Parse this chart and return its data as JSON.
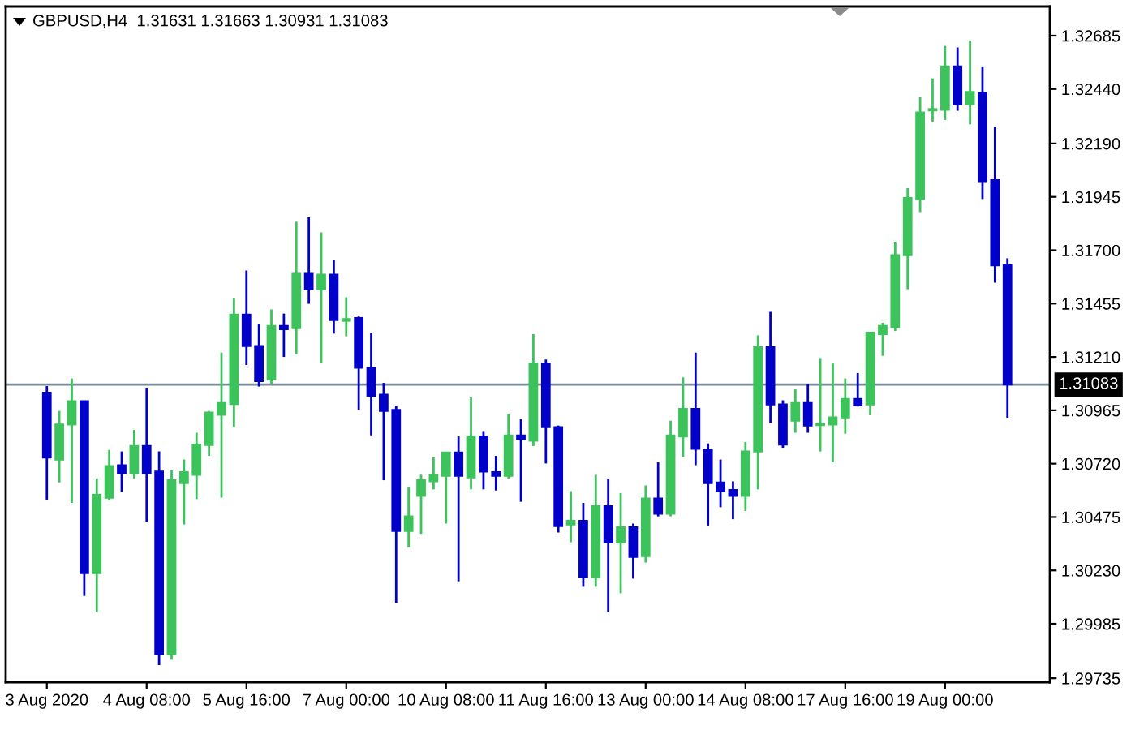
{
  "chart_data": {
    "type": "candlestick",
    "title": "GBPUSD,H4  1.31631 1.31663 1.30931 1.31083",
    "categories": [
      "3 Aug 2020",
      null,
      null,
      null,
      null,
      null,
      null,
      null,
      "4 Aug 08:00",
      null,
      null,
      null,
      null,
      null,
      null,
      null,
      "5 Aug 16:00",
      null,
      null,
      null,
      null,
      null,
      null,
      null,
      "7 Aug 00:00",
      null,
      null,
      null,
      null,
      null,
      null,
      null,
      "10 Aug 08:00",
      null,
      null,
      null,
      null,
      null,
      null,
      null,
      "11 Aug 16:00",
      null,
      null,
      null,
      null,
      null,
      null,
      null,
      "13 Aug 00:00",
      null,
      null,
      null,
      null,
      null,
      null,
      null,
      "14 Aug 08:00",
      null,
      null,
      null,
      null,
      null,
      null,
      null,
      "17 Aug 16:00",
      null,
      null,
      null,
      null,
      null,
      null,
      null,
      "19 Aug 00:00",
      null,
      null,
      null,
      null,
      null
    ],
    "ohlc": [
      [
        1.31046,
        1.31076,
        1.30555,
        1.30748
      ],
      [
        1.30739,
        1.30962,
        1.30634,
        1.309
      ],
      [
        1.309,
        1.31111,
        1.3054,
        1.31007
      ],
      [
        1.31007,
        1.31007,
        1.30113,
        1.30217
      ],
      [
        1.30217,
        1.30652,
        1.30039,
        1.30577
      ],
      [
        1.30564,
        1.30783,
        1.30552,
        1.30709
      ],
      [
        1.30713,
        1.30776,
        1.3059,
        1.30676
      ],
      [
        1.30676,
        1.30875,
        1.30652,
        1.30801
      ],
      [
        1.30801,
        1.31069,
        1.30453,
        1.30676
      ],
      [
        1.30684,
        1.30776,
        1.29795,
        1.29845
      ],
      [
        1.29845,
        1.30689,
        1.2982,
        1.30644
      ],
      [
        1.30631,
        1.30739,
        1.30441,
        1.30681
      ],
      [
        1.30669,
        1.30862,
        1.30557,
        1.30808
      ],
      [
        1.30806,
        1.30962,
        1.30756,
        1.30955
      ],
      [
        1.30944,
        1.3123,
        1.30564,
        1.30999
      ],
      [
        1.30994,
        1.31478,
        1.30888,
        1.31404
      ],
      [
        1.31404,
        1.31607,
        1.31173,
        1.3126
      ],
      [
        1.3126,
        1.31359,
        1.31074,
        1.31099
      ],
      [
        1.31106,
        1.31428,
        1.31086,
        1.31352
      ],
      [
        1.31352,
        1.31409,
        1.3121,
        1.31337
      ],
      [
        1.31342,
        1.31831,
        1.31223,
        1.31595
      ],
      [
        1.31595,
        1.31851,
        1.31454,
        1.31521
      ],
      [
        1.31521,
        1.31782,
        1.3118,
        1.31588
      ],
      [
        1.31588,
        1.31657,
        1.31317,
        1.31379
      ],
      [
        1.31376,
        1.31484,
        1.31305,
        1.31384
      ],
      [
        1.31389,
        1.31396,
        1.30967,
        1.3116
      ],
      [
        1.3116,
        1.31322,
        1.3085,
        1.31031
      ],
      [
        1.31037,
        1.31091,
        1.30644,
        1.30962
      ],
      [
        1.30967,
        1.30987,
        1.3008,
        1.30411
      ],
      [
        1.30411,
        1.30614,
        1.30336,
        1.30478
      ],
      [
        1.30572,
        1.30669,
        1.30398,
        1.30644
      ],
      [
        1.30639,
        1.30751,
        1.30602,
        1.30669
      ],
      [
        1.30664,
        1.30771,
        1.30445,
        1.30771
      ],
      [
        1.30771,
        1.30845,
        1.3018,
        1.30664
      ],
      [
        1.30657,
        1.31024,
        1.30602,
        1.30845
      ],
      [
        1.30845,
        1.3087,
        1.30602,
        1.30684
      ],
      [
        1.30681,
        1.30756,
        1.30597,
        1.30664
      ],
      [
        1.30664,
        1.3095,
        1.30652,
        1.3085
      ],
      [
        1.3085,
        1.30925,
        1.30545,
        1.30833
      ],
      [
        1.30825,
        1.31315,
        1.30801,
        1.3118
      ],
      [
        1.3118,
        1.31198,
        1.30721,
        1.30888
      ],
      [
        1.30888,
        1.30895,
        1.30404,
        1.30433
      ],
      [
        1.30441,
        1.30594,
        1.30359,
        1.30458
      ],
      [
        1.30458,
        1.3054,
        1.30155,
        1.30199
      ],
      [
        1.30199,
        1.30669,
        1.30155,
        1.30525
      ],
      [
        1.30525,
        1.30652,
        1.30039,
        1.30359
      ],
      [
        1.30359,
        1.30585,
        1.30125,
        1.30428
      ],
      [
        1.30428,
        1.30445,
        1.30192,
        1.30292
      ],
      [
        1.30296,
        1.3062,
        1.30266,
        1.3056
      ],
      [
        1.3056,
        1.30726,
        1.30478,
        1.3049
      ],
      [
        1.3049,
        1.30917,
        1.30478,
        1.3085
      ],
      [
        1.30845,
        1.31116,
        1.30751,
        1.30972
      ],
      [
        1.30972,
        1.3123,
        1.30713,
        1.30788
      ],
      [
        1.30783,
        1.30813,
        1.30436,
        1.30631
      ],
      [
        1.30634,
        1.30739,
        1.3052,
        1.30594
      ],
      [
        1.30599,
        1.30639,
        1.30465,
        1.30572
      ],
      [
        1.30572,
        1.30819,
        1.30503,
        1.30776
      ],
      [
        1.30776,
        1.31309,
        1.30602,
        1.31255
      ],
      [
        1.31255,
        1.31417,
        1.30907,
        1.30992
      ],
      [
        1.30992,
        1.31011,
        1.30793,
        1.30808
      ],
      [
        1.30917,
        1.31061,
        1.30862,
        1.30999
      ],
      [
        1.30999,
        1.31086,
        1.30862,
        1.30895
      ],
      [
        1.30897,
        1.31205,
        1.30776,
        1.30903
      ],
      [
        1.309,
        1.3118,
        1.30726,
        1.30932
      ],
      [
        1.30932,
        1.31111,
        1.30858,
        1.31017
      ],
      [
        1.31017,
        1.31136,
        1.30982,
        1.30987
      ],
      [
        1.30992,
        1.31322,
        1.30942,
        1.31322
      ],
      [
        1.31315,
        1.31367,
        1.31215,
        1.31352
      ],
      [
        1.31347,
        1.31739,
        1.31329,
        1.31677
      ],
      [
        1.31677,
        1.31985,
        1.31521,
        1.3194
      ],
      [
        1.31935,
        1.32402,
        1.31875,
        1.32333
      ],
      [
        1.32342,
        1.32489,
        1.3229,
        1.32348
      ],
      [
        1.32345,
        1.32638,
        1.32298,
        1.32544
      ],
      [
        1.32544,
        1.32631,
        1.3234,
        1.3237
      ],
      [
        1.3237,
        1.32663,
        1.32278,
        1.32427
      ],
      [
        1.32422,
        1.32544,
        1.31935,
        1.32017
      ],
      [
        1.32022,
        1.32266,
        1.31551,
        1.31631
      ],
      [
        1.31631,
        1.31663,
        1.30931,
        1.31083
      ]
    ],
    "colors": [
      "#0000c8",
      "#3cc35b",
      "#3cc35b",
      "#0000c8",
      "#3cc35b",
      "#3cc35b",
      "#0000c8",
      "#3cc35b",
      "#0000c8",
      "#0000c8",
      "#3cc35b",
      "#3cc35b",
      "#3cc35b",
      "#3cc35b",
      "#3cc35b",
      "#3cc35b",
      "#0000c8",
      "#0000c8",
      "#3cc35b",
      "#0000c8",
      "#3cc35b",
      "#0000c8",
      "#3cc35b",
      "#0000c8",
      "#3cc35b",
      "#0000c8",
      "#0000c8",
      "#0000c8",
      "#0000c8",
      "#3cc35b",
      "#3cc35b",
      "#3cc35b",
      "#3cc35b",
      "#0000c8",
      "#3cc35b",
      "#0000c8",
      "#0000c8",
      "#3cc35b",
      "#0000c8",
      "#3cc35b",
      "#0000c8",
      "#0000c8",
      "#3cc35b",
      "#0000c8",
      "#3cc35b",
      "#0000c8",
      "#3cc35b",
      "#0000c8",
      "#3cc35b",
      "#0000c8",
      "#3cc35b",
      "#3cc35b",
      "#0000c8",
      "#0000c8",
      "#0000c8",
      "#0000c8",
      "#3cc35b",
      "#3cc35b",
      "#0000c8",
      "#0000c8",
      "#3cc35b",
      "#0000c8",
      "#3cc35b",
      "#3cc35b",
      "#3cc35b",
      "#0000c8",
      "#3cc35b",
      "#3cc35b",
      "#3cc35b",
      "#3cc35b",
      "#3cc35b",
      "#3cc35b",
      "#3cc35b",
      "#0000c8",
      "#3cc35b",
      "#0000c8",
      "#0000c8",
      "#0000c8"
    ],
    "ylim": [
      1.29717,
      1.32819
    ],
    "yticks": [
      1.32685,
      {
        "value": 1.3244,
        "label": "1.32440"
      },
      {
        "value": 1.3219,
        "label": "1.32190"
      },
      1.31945,
      {
        "value": 1.317,
        "label": "1.31700"
      },
      1.31455,
      {
        "value": 1.3121,
        "label": "1.31210"
      },
      1.30965,
      {
        "value": 1.3072,
        "label": "1.30720"
      },
      1.30475,
      {
        "value": 1.3023,
        "label": "1.30230"
      },
      1.29985,
      1.29735
    ],
    "ref_lines": [
      {
        "axis": "y",
        "value": 1.31083,
        "label": "1.31083",
        "color": "#7a8a99"
      }
    ]
  }
}
